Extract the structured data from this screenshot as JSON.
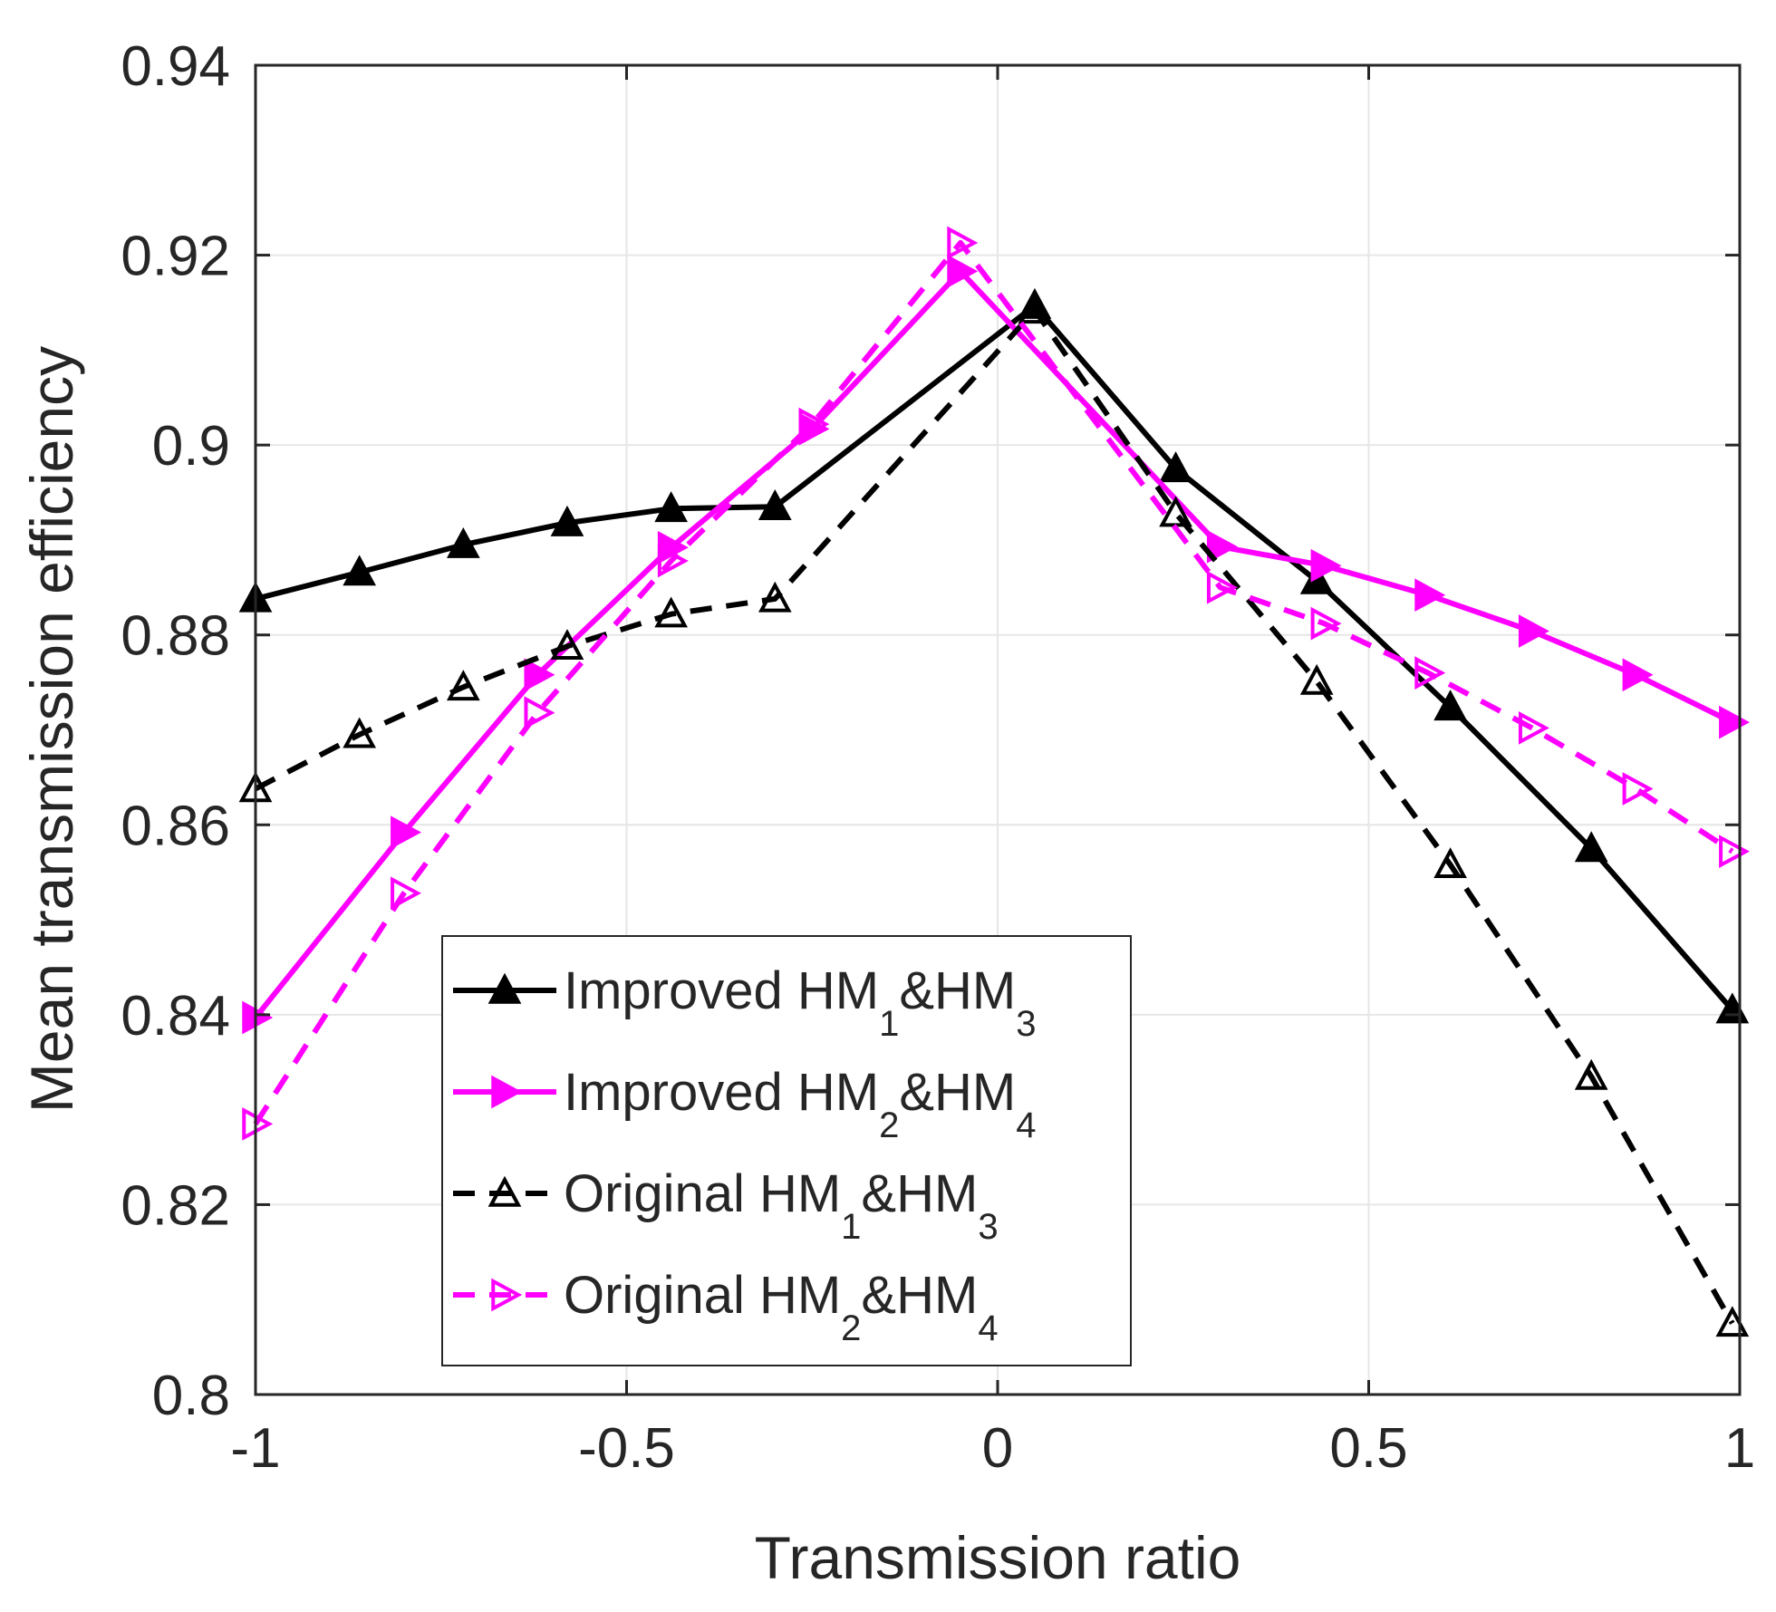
{
  "chart_data": {
    "type": "line",
    "title": "",
    "xlabel": "Transmission ratio",
    "ylabel": "Mean transmission efficiency",
    "xlim": [
      -1,
      1
    ],
    "ylim": [
      0.8,
      0.94
    ],
    "xticks": [
      -1,
      -0.5,
      0,
      0.5,
      1
    ],
    "xtick_labels": [
      "-1",
      "-0.5",
      "0",
      "0.5",
      "1"
    ],
    "yticks": [
      0.8,
      0.82,
      0.84,
      0.86,
      0.88,
      0.9,
      0.92,
      0.94
    ],
    "ytick_labels": [
      "0.8",
      "0.82",
      "0.84",
      "0.86",
      "0.88",
      "0.9",
      "0.92",
      "0.94"
    ],
    "grid": true,
    "legend_position": "bottom-center",
    "series": [
      {
        "name": "Improved HM1&HM3",
        "label_parts": [
          "Improved HM",
          "1",
          "&HM",
          "3"
        ],
        "color": "#000000",
        "line_style": "solid",
        "marker": "triangle-up",
        "marker_filled": true,
        "x": [
          -1,
          -0.86,
          -0.72,
          -0.58,
          -0.44,
          -0.3,
          0.05,
          0.24,
          0.43,
          0.61,
          0.8,
          0.99
        ],
        "y": [
          0.8838,
          0.8866,
          0.8895,
          0.8918,
          0.8933,
          0.8935,
          0.9147,
          0.8975,
          0.8857,
          0.8724,
          0.8575,
          0.8405
        ]
      },
      {
        "name": "Improved HM2&HM4",
        "label_parts": [
          "Improved HM",
          "2",
          "&HM",
          "4"
        ],
        "color": "#ff00ff",
        "line_style": "solid",
        "marker": "triangle-right",
        "marker_filled": true,
        "x": [
          -1,
          -0.8,
          -0.62,
          -0.44,
          -0.25,
          -0.05,
          0.3,
          0.44,
          0.58,
          0.72,
          0.86,
          0.99
        ],
        "y": [
          0.8397,
          0.8592,
          0.8758,
          0.8892,
          0.9017,
          0.9183,
          0.8893,
          0.8873,
          0.8842,
          0.8804,
          0.8758,
          0.8708
        ]
      },
      {
        "name": "Original HM1&HM3",
        "label_parts": [
          "Original HM",
          "1",
          "&HM",
          "3"
        ],
        "color": "#000000",
        "line_style": "dashed",
        "marker": "triangle-up",
        "marker_filled": false,
        "x": [
          -1,
          -0.86,
          -0.72,
          -0.58,
          -0.44,
          -0.3,
          0.05,
          0.24,
          0.43,
          0.61,
          0.8,
          0.99
        ],
        "y": [
          0.8638,
          0.8695,
          0.8745,
          0.8788,
          0.8822,
          0.8838,
          0.9142,
          0.8928,
          0.8751,
          0.8558,
          0.8335,
          0.8075
        ]
      },
      {
        "name": "Original HM2&HM4",
        "label_parts": [
          "Original HM",
          "2",
          "&HM",
          "4"
        ],
        "color": "#ff00ff",
        "line_style": "dashed",
        "marker": "triangle-right",
        "marker_filled": false,
        "x": [
          -1,
          -0.8,
          -0.62,
          -0.44,
          -0.25,
          -0.05,
          0.3,
          0.44,
          0.58,
          0.72,
          0.86,
          0.99
        ],
        "y": [
          0.8285,
          0.8528,
          0.8718,
          0.8878,
          0.9022,
          0.9213,
          0.885,
          0.8812,
          0.876,
          0.8702,
          0.8638,
          0.8572
        ]
      }
    ]
  }
}
